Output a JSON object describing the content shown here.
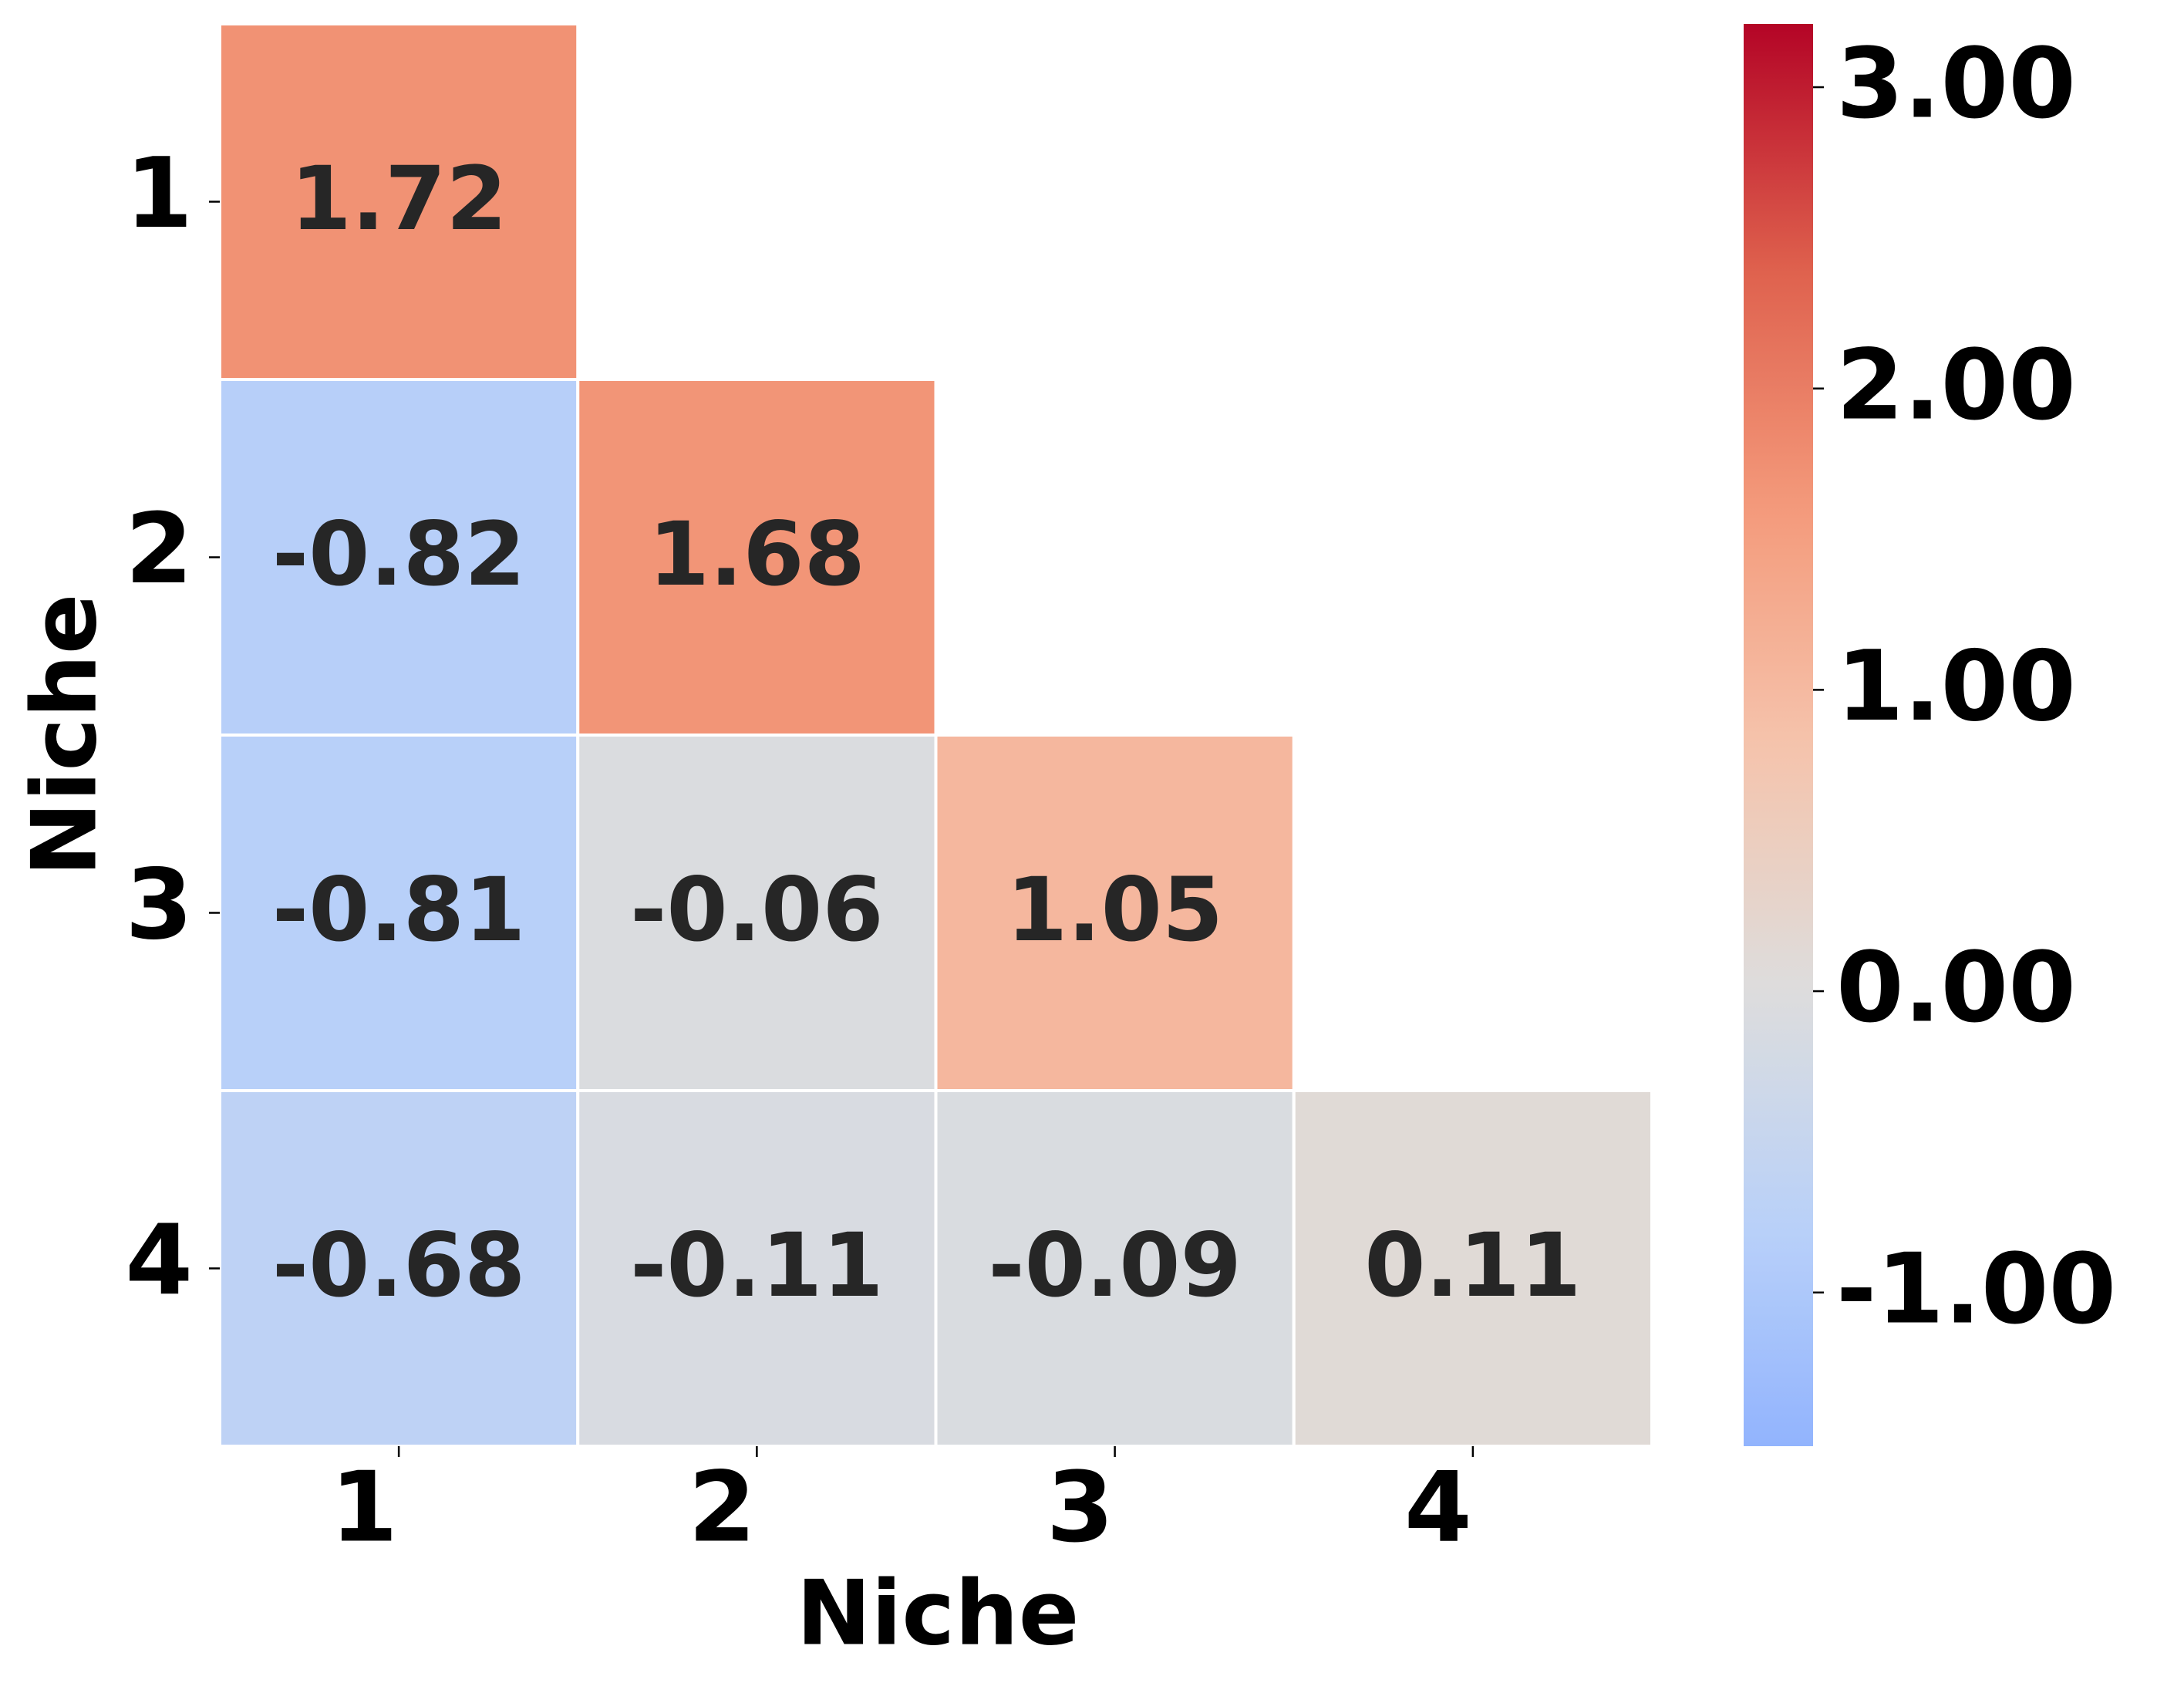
{
  "chart_data": {
    "type": "heatmap",
    "x_categories": [
      "1",
      "2",
      "3",
      "4"
    ],
    "y_categories": [
      "1",
      "2",
      "3",
      "4"
    ],
    "xlabel": "Niche",
    "ylabel": "Niche",
    "values": [
      [
        1.72,
        null,
        null,
        null
      ],
      [
        -0.82,
        1.68,
        null,
        null
      ],
      [
        -0.81,
        -0.06,
        1.05,
        null
      ],
      [
        -0.68,
        -0.11,
        -0.09,
        0.11
      ]
    ],
    "colormap": "coolwarm",
    "center": 0,
    "clim": [
      -1.51,
      3.21
    ],
    "cticks": [
      {
        "value": -1,
        "label": "-1.00"
      },
      {
        "value": 0,
        "label": "0.00"
      },
      {
        "value": 1,
        "label": "1.00"
      },
      {
        "value": 2,
        "label": "2.00"
      },
      {
        "value": 3,
        "label": "3.00"
      }
    ]
  }
}
